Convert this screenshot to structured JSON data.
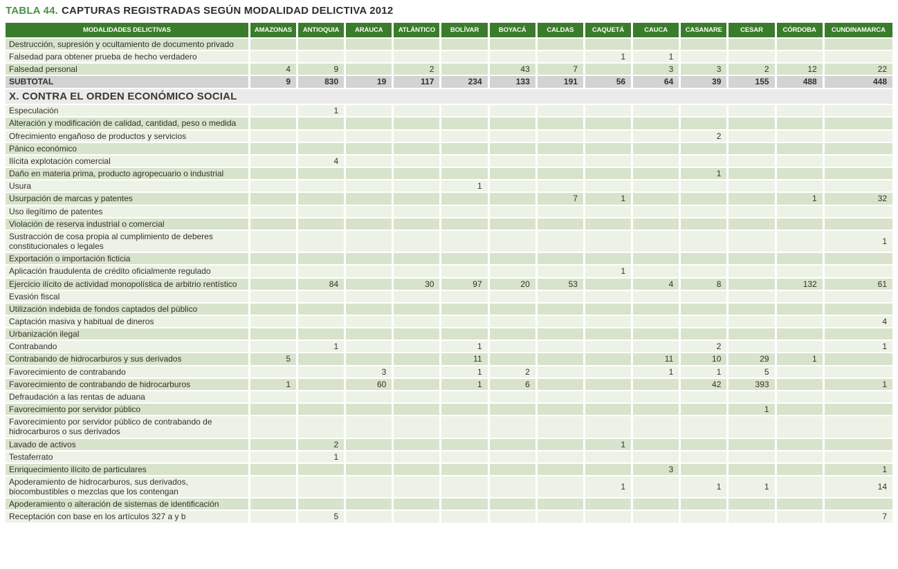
{
  "title": {
    "prefix": "TABLA 44.",
    "text": "CAPTURAS REGISTRADAS SEGÚN MODALIDAD DELICTIVA 2012"
  },
  "colors": {
    "header_green": "#3a7c2c",
    "row_dark_green": "#d7e3cb",
    "row_light_green": "#edf2e6",
    "subtotal_gray": "#d3d3d3",
    "section_gray": "#ebebeb",
    "title_green": "#4a9143",
    "text": "#32312b"
  },
  "table": {
    "first_column_header": "MODALIDADES DELICTIVAS",
    "columns": [
      "AMAZONAS",
      "ANTIOQUIA",
      "ARAUCA",
      "ATLÁNTICO",
      "BOLÍVAR",
      "BOYACÁ",
      "CALDAS",
      "CAQUETÁ",
      "CAUCA",
      "CASANARE",
      "CESAR",
      "CÓRDOBA",
      "CUNDINAMARCA"
    ],
    "rows": [
      {
        "type": "data",
        "label": "Destrucción, supresión y ocultamiento de documento privado",
        "values": [
          "",
          "",
          "",
          "",
          "",
          "",
          "",
          "",
          "",
          "",
          "",
          "",
          ""
        ]
      },
      {
        "type": "data",
        "label": "Falsedad para obtener prueba de hecho verdadero",
        "values": [
          "",
          "",
          "",
          "",
          "",
          "",
          "",
          "1",
          "1",
          "",
          "",
          "",
          ""
        ]
      },
      {
        "type": "data",
        "label": "Falsedad personal",
        "values": [
          "4",
          "9",
          "",
          "2",
          "",
          "43",
          "7",
          "",
          "3",
          "3",
          "2",
          "12",
          "22"
        ]
      },
      {
        "type": "subtotal",
        "label": "SUBTOTAL",
        "values": [
          "9",
          "830",
          "19",
          "117",
          "234",
          "133",
          "191",
          "56",
          "64",
          "39",
          "155",
          "488",
          "448"
        ]
      },
      {
        "type": "section",
        "label": "X. CONTRA EL ORDEN ECONÓMICO SOCIAL"
      },
      {
        "type": "data",
        "label": "Especulación",
        "values": [
          "",
          "1",
          "",
          "",
          "",
          "",
          "",
          "",
          "",
          "",
          "",
          "",
          ""
        ]
      },
      {
        "type": "data",
        "label": "Alteración y modificación de calidad, cantidad, peso o medida",
        "values": [
          "",
          "",
          "",
          "",
          "",
          "",
          "",
          "",
          "",
          "",
          "",
          "",
          ""
        ]
      },
      {
        "type": "data",
        "label": "Ofrecimiento engañoso de productos y servicios",
        "values": [
          "",
          "",
          "",
          "",
          "",
          "",
          "",
          "",
          "",
          "2",
          "",
          "",
          ""
        ]
      },
      {
        "type": "data",
        "label": "Pánico económico",
        "values": [
          "",
          "",
          "",
          "",
          "",
          "",
          "",
          "",
          "",
          "",
          "",
          "",
          ""
        ]
      },
      {
        "type": "data",
        "label": "Ilícita explotación comercial",
        "values": [
          "",
          "4",
          "",
          "",
          "",
          "",
          "",
          "",
          "",
          "",
          "",
          "",
          ""
        ]
      },
      {
        "type": "data",
        "label": "Daño en materia prima, producto agropecuario o industrial",
        "values": [
          "",
          "",
          "",
          "",
          "",
          "",
          "",
          "",
          "",
          "1",
          "",
          "",
          ""
        ]
      },
      {
        "type": "data",
        "label": "Usura",
        "values": [
          "",
          "",
          "",
          "",
          "1",
          "",
          "",
          "",
          "",
          "",
          "",
          "",
          ""
        ]
      },
      {
        "type": "data",
        "label": "Usurpación de marcas y patentes",
        "values": [
          "",
          "",
          "",
          "",
          "",
          "",
          "7",
          "1",
          "",
          "",
          "",
          "1",
          "32"
        ]
      },
      {
        "type": "data",
        "label": "Uso ilegítimo de patentes",
        "values": [
          "",
          "",
          "",
          "",
          "",
          "",
          "",
          "",
          "",
          "",
          "",
          "",
          ""
        ]
      },
      {
        "type": "data",
        "label": "Violación de reserva industrial o comercial",
        "values": [
          "",
          "",
          "",
          "",
          "",
          "",
          "",
          "",
          "",
          "",
          "",
          "",
          ""
        ]
      },
      {
        "type": "data",
        "label": "Sustracción de cosa propia al cumplimiento de deberes constitucionales o legales",
        "values": [
          "",
          "",
          "",
          "",
          "",
          "",
          "",
          "",
          "",
          "",
          "",
          "",
          "1"
        ]
      },
      {
        "type": "data",
        "label": "Exportación o importación ficticia",
        "values": [
          "",
          "",
          "",
          "",
          "",
          "",
          "",
          "",
          "",
          "",
          "",
          "",
          ""
        ]
      },
      {
        "type": "data",
        "label": "Aplicación fraudulenta de crédito oficialmente regulado",
        "values": [
          "",
          "",
          "",
          "",
          "",
          "",
          "",
          "1",
          "",
          "",
          "",
          "",
          ""
        ]
      },
      {
        "type": "data",
        "label": "Ejercicio ilícito de actividad monopolística de arbitrio rentístico",
        "values": [
          "",
          "84",
          "",
          "30",
          "97",
          "20",
          "53",
          "",
          "4",
          "8",
          "",
          "132",
          "61"
        ]
      },
      {
        "type": "data",
        "label": "Evasión fiscal",
        "values": [
          "",
          "",
          "",
          "",
          "",
          "",
          "",
          "",
          "",
          "",
          "",
          "",
          ""
        ]
      },
      {
        "type": "data",
        "label": "Utilización indebida de fondos captados del público",
        "values": [
          "",
          "",
          "",
          "",
          "",
          "",
          "",
          "",
          "",
          "",
          "",
          "",
          ""
        ]
      },
      {
        "type": "data",
        "label": "Captación masiva y habitual de dineros",
        "values": [
          "",
          "",
          "",
          "",
          "",
          "",
          "",
          "",
          "",
          "",
          "",
          "",
          "4"
        ]
      },
      {
        "type": "data",
        "label": "Urbanización ilegal",
        "values": [
          "",
          "",
          "",
          "",
          "",
          "",
          "",
          "",
          "",
          "",
          "",
          "",
          ""
        ]
      },
      {
        "type": "data",
        "label": "Contrabando",
        "values": [
          "",
          "1",
          "",
          "",
          "1",
          "",
          "",
          "",
          "",
          "2",
          "",
          "",
          "1"
        ]
      },
      {
        "type": "data",
        "label": "Contrabando de hidrocarburos y sus derivados",
        "values": [
          "5",
          "",
          "",
          "",
          "11",
          "",
          "",
          "",
          "11",
          "10",
          "29",
          "1",
          ""
        ]
      },
      {
        "type": "data",
        "label": "Favorecimiento de contrabando",
        "values": [
          "",
          "",
          "3",
          "",
          "1",
          "2",
          "",
          "",
          "1",
          "1",
          "5",
          "",
          ""
        ]
      },
      {
        "type": "data",
        "label": "Favorecimiento de contrabando de hidrocarburos",
        "values": [
          "1",
          "",
          "60",
          "",
          "1",
          "6",
          "",
          "",
          "",
          "42",
          "393",
          "",
          "1"
        ]
      },
      {
        "type": "data",
        "label": "Defraudación a las rentas de aduana",
        "values": [
          "",
          "",
          "",
          "",
          "",
          "",
          "",
          "",
          "",
          "",
          "",
          "",
          ""
        ]
      },
      {
        "type": "data",
        "label": "Favorecimiento por servidor público",
        "values": [
          "",
          "",
          "",
          "",
          "",
          "",
          "",
          "",
          "",
          "",
          "1",
          "",
          ""
        ]
      },
      {
        "type": "data",
        "label": "Favorecimiento por servidor público de contrabando de hidrocarburos o sus derivados",
        "values": [
          "",
          "",
          "",
          "",
          "",
          "",
          "",
          "",
          "",
          "",
          "",
          "",
          ""
        ]
      },
      {
        "type": "data",
        "label": "Lavado de activos",
        "values": [
          "",
          "2",
          "",
          "",
          "",
          "",
          "",
          "1",
          "",
          "",
          "",
          "",
          ""
        ]
      },
      {
        "type": "data",
        "label": "Testaferrato",
        "values": [
          "",
          "1",
          "",
          "",
          "",
          "",
          "",
          "",
          "",
          "",
          "",
          "",
          ""
        ]
      },
      {
        "type": "data",
        "label": "Enriquecimiento ilícito de particulares",
        "values": [
          "",
          "",
          "",
          "",
          "",
          "",
          "",
          "",
          "3",
          "",
          "",
          "",
          "1"
        ]
      },
      {
        "type": "data",
        "label": "Apoderamiento de hidrocarburos, sus derivados, biocombustibles o mezclas que los contengan",
        "values": [
          "",
          "",
          "",
          "",
          "",
          "",
          "",
          "1",
          "",
          "1",
          "1",
          "",
          "14"
        ]
      },
      {
        "type": "data",
        "label": "Apoderamiento o alteración de sistemas de identificación",
        "values": [
          "",
          "",
          "",
          "",
          "",
          "",
          "",
          "",
          "",
          "",
          "",
          "",
          ""
        ]
      },
      {
        "type": "data",
        "label": "Receptación con base en los artículos 327 a y b",
        "values": [
          "",
          "5",
          "",
          "",
          "",
          "",
          "",
          "",
          "",
          "",
          "",
          "",
          "7"
        ]
      }
    ]
  }
}
